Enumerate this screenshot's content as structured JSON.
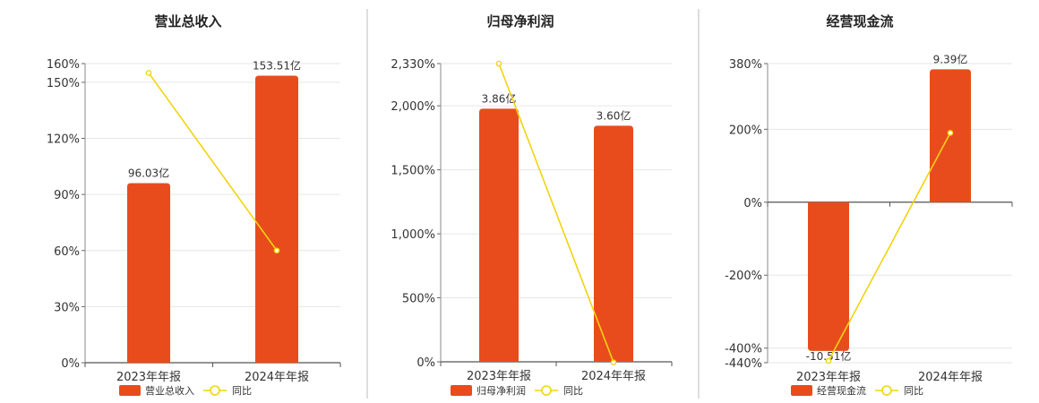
{
  "chart_data": [
    {
      "type": "bar",
      "title": "营业总收入",
      "categories": [
        "2023年年报",
        "2024年年报"
      ],
      "bar_series": {
        "name": "营业总收入",
        "values": [
          96.03,
          153.51
        ],
        "labels": [
          "96.03亿",
          "153.51亿"
        ],
        "color": "#e84c1d"
      },
      "line_series": {
        "name": "同比",
        "values": [
          155,
          60
        ],
        "color": "#f2d40f"
      },
      "ylim": [
        0,
        160
      ],
      "yticks": [
        0,
        30,
        60,
        90,
        120,
        150,
        160
      ],
      "ytick_labels": [
        "0%",
        "30%",
        "60%",
        "90%",
        "120%",
        "150%",
        "160%"
      ],
      "grid": true,
      "legend_position": "bottom"
    },
    {
      "type": "bar",
      "title": "归母净利润",
      "categories": [
        "2023年年报",
        "2024年年报"
      ],
      "bar_series": {
        "name": "归母净利润",
        "values": [
          3.86,
          3.6
        ],
        "labels": [
          "3.86亿",
          "3.60亿"
        ],
        "color": "#e84c1d"
      },
      "line_series": {
        "name": "同比",
        "values": [
          2330,
          -5
        ],
        "color": "#f2d40f"
      },
      "ylim": [
        0,
        2330
      ],
      "yticks": [
        0,
        500,
        1000,
        1500,
        2000,
        2330
      ],
      "ytick_labels": [
        "0%",
        "500%",
        "1,000%",
        "1,500%",
        "2,000%",
        "2,330%"
      ],
      "grid": true,
      "legend_position": "bottom"
    },
    {
      "type": "bar",
      "title": "经营现金流",
      "categories": [
        "2023年年报",
        "2024年年报"
      ],
      "bar_series": {
        "name": "经营现金流",
        "values": [
          -10.51,
          9.39
        ],
        "labels": [
          "-10.51亿",
          "9.39亿"
        ],
        "color": "#e84c1d"
      },
      "line_series": {
        "name": "同比",
        "values": [
          -435,
          190
        ],
        "color": "#f2d40f"
      },
      "ylim": [
        -440,
        380
      ],
      "yticks": [
        -440,
        -400,
        -200,
        0,
        200,
        380
      ],
      "ytick_labels": [
        "-440%",
        "-400%",
        "-200%",
        "0%",
        "200%",
        "380%"
      ],
      "grid": true,
      "legend_position": "bottom"
    }
  ]
}
